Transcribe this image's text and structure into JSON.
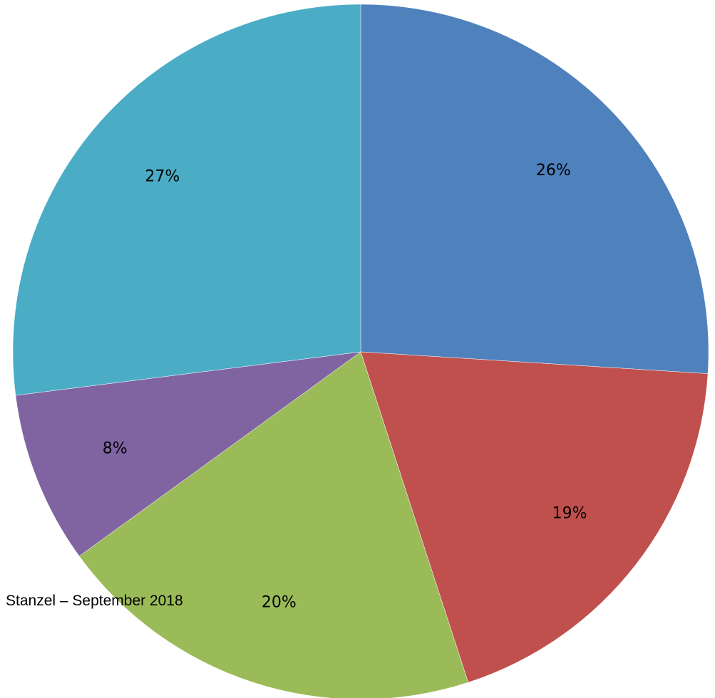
{
  "credit": "Stanzel – September 2018",
  "chart_data": {
    "type": "pie",
    "start_angle_deg": 0,
    "direction": "clockwise",
    "slices": [
      {
        "label": "26%",
        "value": 26,
        "color": "#4f81bd"
      },
      {
        "label": "19%",
        "value": 19,
        "color": "#c0504d"
      },
      {
        "label": "20%",
        "value": 20,
        "color": "#9bbb59"
      },
      {
        "label": "8%",
        "value": 8,
        "color": "#8064a2"
      },
      {
        "label": "27%",
        "value": 27,
        "color": "#4bacc6"
      }
    ]
  }
}
